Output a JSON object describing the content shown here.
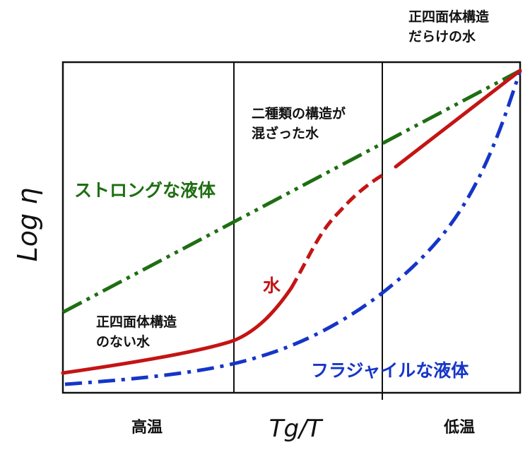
{
  "chart_data": {
    "type": "line",
    "ylabel": "Log η",
    "xlabel": "Tg/T",
    "x_axis_left_label": "高温",
    "x_axis_right_label": "低温",
    "series": [
      {
        "name": "ストロングな液体",
        "color": "#1e6e12",
        "style": "dash-dot-dot"
      },
      {
        "name": "フラジャイルな液体",
        "color": "#1535c8",
        "style": "dash-dot"
      },
      {
        "name": "水",
        "color": "#c41414",
        "style": "solid / dashed"
      }
    ],
    "regions": [
      {
        "label_lines": [
          "正四面体構造",
          "のない水"
        ]
      },
      {
        "label_lines": [
          "二種類の構造が",
          "混ざった水"
        ]
      },
      {
        "label_lines": [
          "正四面体構造",
          "だらけの水"
        ]
      }
    ]
  },
  "colors": {
    "strong": "#1e6e12",
    "fragile": "#1535c8",
    "water": "#c41414",
    "frame": "#111111"
  }
}
